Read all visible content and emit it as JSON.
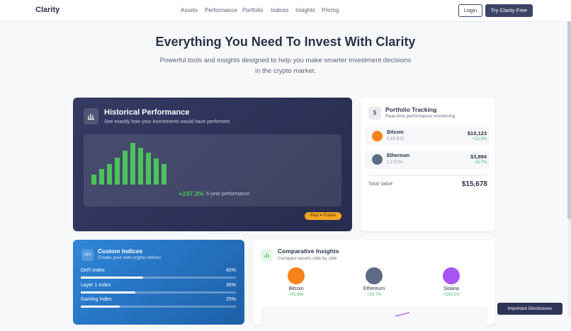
{
  "nav": {
    "logo": "Clarity",
    "links": [
      "Assets",
      "Performance",
      "Portfolio",
      "Indices",
      "Insights",
      "Pricing"
    ],
    "login": "Login",
    "cta": "Try Clarity Free"
  },
  "hero": {
    "title": "Everything You Need To Invest With Clarity",
    "subtitle_lines": [
      "Powerful tools and insights designed to help you make smarter investment decisions",
      "in the crypto market."
    ]
  },
  "historical": {
    "title": "Historical Performance",
    "subtitle": "See exactly how your investments would have performed",
    "return": "+247.3%",
    "return_label": "5-year performance",
    "badge": "Past ≠ Future"
  },
  "portfolio": {
    "title": "Portfolio Tracking",
    "subtitle": "Real-time performance monitoring",
    "assets": [
      {
        "name": "Bitcoin",
        "amount": "0.15 BTC",
        "value": "$10,123",
        "change": "+12.3%"
      },
      {
        "name": "Ethereum",
        "amount": "1.2 ETH",
        "value": "$3,894",
        "change": "+8.7%"
      }
    ],
    "total_label": "Total Value",
    "total": "$15,678"
  },
  "indices": {
    "title": "Custom Indices",
    "subtitle": "Create your own crypto indices",
    "items": [
      {
        "name": "DeFi Index",
        "share": {
          "value": 40,
          "label": "40%"
        }
      },
      {
        "name": "Layer 1 Index",
        "share": {
          "value": 35,
          "label": "35%"
        }
      },
      {
        "name": "Gaming Index",
        "share": {
          "value": 25,
          "label": "25%"
        }
      }
    ]
  },
  "insights": {
    "title": "Comparative Insights",
    "subtitle": "Compare assets side by side",
    "assets": [
      {
        "name": "Bitcoin",
        "change": "+41.8%"
      },
      {
        "name": "Ethereum",
        "change": "+26.7%"
      },
      {
        "name": "Solana",
        "change": "+154.3%"
      }
    ]
  },
  "disclosures": "Important Disclosures"
}
